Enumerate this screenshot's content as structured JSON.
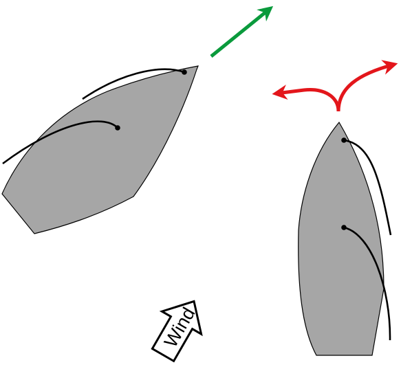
{
  "wind_label": "Wind",
  "colors": {
    "hull_fill": "#a6a6a6",
    "hull_stroke": "#000000",
    "sail_stroke": "#000000",
    "heading_arrow": "#0a9a3c",
    "alternative_arrows": "#e3161b",
    "wind_arrow_fill": "#ffffff",
    "wind_arrow_stroke": "#000000"
  },
  "icons": {
    "sailing_boat": "boat-close-hauled-icon",
    "head_to_wind_boat": "boat-head-to-wind-icon",
    "heading_arrow": "green-arrow-icon",
    "tack_options": "red-split-arrow-icon",
    "wind": "wind-arrow-icon"
  }
}
